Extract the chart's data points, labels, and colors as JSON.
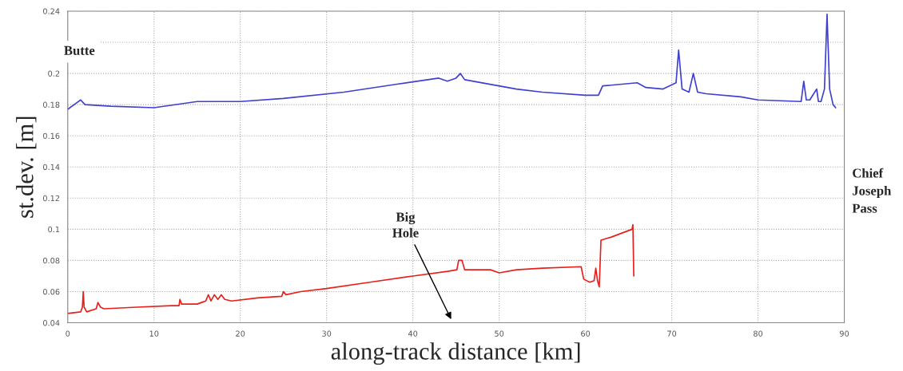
{
  "chart_data": {
    "type": "line",
    "xlabel": "along-track distance [km]",
    "ylabel": "st.dev. [m]",
    "annotations": [
      "Butte",
      "Chief\nJoseph\nPass",
      "Big\nHole"
    ],
    "xlim": [
      0,
      90
    ],
    "xticks": [
      0,
      10,
      20,
      30,
      40,
      50,
      60,
      70,
      80,
      90
    ],
    "ylim": [
      0.04,
      0.24
    ],
    "yticks": [
      0.04,
      0.06,
      0.08,
      0.1,
      0.12,
      0.14,
      0.16,
      0.18,
      0.2,
      {
        "value": 0.22,
        "label": null
      },
      0.24
    ],
    "grid": true,
    "line_style": "solid",
    "marker": "none",
    "series": [
      {
        "color": "#e8201c",
        "x": [
          0,
          1.5,
          1.7,
          1.8,
          1.9,
          2.2,
          3.3,
          3.5,
          3.8,
          4.2,
          8,
          12,
          12.9,
          13,
          13.2,
          15,
          16,
          16.3,
          16.6,
          17,
          17.4,
          17.8,
          18.2,
          19,
          22,
          24.8,
          25,
          25.3,
          27,
          30,
          35,
          40,
          44,
          45.1,
          45.3,
          45.7,
          46,
          49,
          50,
          52,
          55,
          59.5,
          59.8,
          60.5,
          61,
          61.2,
          61.4,
          61.6,
          61.8,
          63,
          65.4,
          65.5,
          65.6
        ],
        "values": [
          0.046,
          0.047,
          0.05,
          0.06,
          0.05,
          0.047,
          0.049,
          0.053,
          0.05,
          0.049,
          0.05,
          0.051,
          0.051,
          0.055,
          0.052,
          0.052,
          0.054,
          0.058,
          0.054,
          0.058,
          0.055,
          0.058,
          0.055,
          0.054,
          0.056,
          0.057,
          0.06,
          0.058,
          0.06,
          0.062,
          0.066,
          0.07,
          0.073,
          0.074,
          0.08,
          0.08,
          0.074,
          0.074,
          0.072,
          0.074,
          0.075,
          0.076,
          0.068,
          0.066,
          0.067,
          0.075,
          0.067,
          0.063,
          0.093,
          0.095,
          0.1,
          0.103,
          0.07
        ]
      },
      {
        "color": "#3f3fd0",
        "x": [
          0,
          1,
          1.5,
          2,
          5,
          10,
          15,
          20,
          25,
          32,
          38,
          43,
          44,
          45,
          45.5,
          46,
          52,
          55,
          60,
          61.5,
          62,
          66,
          67,
          69,
          70.5,
          70.8,
          71.2,
          72,
          72.5,
          73,
          74,
          78,
          80,
          85,
          85.3,
          85.6,
          86,
          86.8,
          87,
          87.3,
          87.7,
          88,
          88.3,
          88.7,
          89
        ],
        "values": [
          0.177,
          0.181,
          0.183,
          0.18,
          0.179,
          0.178,
          0.182,
          0.182,
          0.184,
          0.188,
          0.193,
          0.197,
          0.195,
          0.197,
          0.2,
          0.196,
          0.19,
          0.188,
          0.186,
          0.186,
          0.192,
          0.194,
          0.191,
          0.19,
          0.194,
          0.215,
          0.19,
          0.188,
          0.2,
          0.188,
          0.187,
          0.185,
          0.183,
          0.182,
          0.195,
          0.183,
          0.183,
          0.19,
          0.182,
          0.182,
          0.19,
          0.238,
          0.19,
          0.18,
          0.178
        ]
      }
    ]
  }
}
